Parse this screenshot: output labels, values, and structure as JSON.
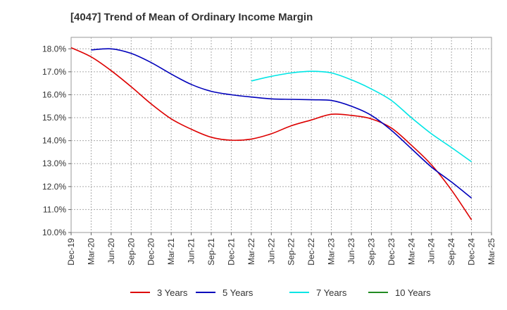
{
  "chart_data": {
    "type": "line",
    "title": "[4047]  Trend of Mean of Ordinary Income Margin",
    "xlabel": "",
    "ylabel": "",
    "categories": [
      "Dec-19",
      "Mar-20",
      "Jun-20",
      "Sep-20",
      "Dec-20",
      "Mar-21",
      "Jun-21",
      "Sep-21",
      "Dec-21",
      "Mar-22",
      "Jun-22",
      "Sep-22",
      "Dec-22",
      "Mar-23",
      "Jun-23",
      "Sep-23",
      "Dec-23",
      "Mar-24",
      "Jun-24",
      "Sep-24",
      "Dec-24",
      "Mar-25"
    ],
    "ylim": [
      10.0,
      18.5
    ],
    "yticks": [
      "10.0%",
      "11.0%",
      "12.0%",
      "13.0%",
      "14.0%",
      "15.0%",
      "16.0%",
      "17.0%",
      "18.0%"
    ],
    "grid": true,
    "legend": "bottom",
    "series": [
      {
        "name": "3 Years",
        "color": "#dd0000",
        "values": [
          18.05,
          17.65,
          17.05,
          16.35,
          15.6,
          14.95,
          14.5,
          14.15,
          14.02,
          14.07,
          14.3,
          14.65,
          14.9,
          15.15,
          15.1,
          14.95,
          14.55,
          13.8,
          12.95,
          11.85,
          10.55,
          null
        ]
      },
      {
        "name": "5 Years",
        "color": "#0000bb",
        "values": [
          null,
          17.95,
          18.0,
          17.8,
          17.4,
          16.9,
          16.45,
          16.15,
          16.0,
          15.9,
          15.82,
          15.8,
          15.78,
          15.75,
          15.5,
          15.1,
          14.45,
          13.65,
          12.85,
          12.2,
          11.5,
          null
        ]
      },
      {
        "name": "7 Years",
        "color": "#00e5e5",
        "values": [
          null,
          null,
          null,
          null,
          null,
          null,
          null,
          null,
          null,
          16.6,
          16.8,
          16.95,
          17.02,
          16.95,
          16.65,
          16.25,
          15.75,
          15.0,
          14.3,
          13.7,
          13.08,
          null
        ]
      },
      {
        "name": "10 Years",
        "color": "#228B22",
        "values": [
          null,
          null,
          null,
          null,
          null,
          null,
          null,
          null,
          null,
          null,
          null,
          null,
          null,
          null,
          null,
          null,
          null,
          null,
          null,
          null,
          null,
          null
        ]
      }
    ]
  }
}
